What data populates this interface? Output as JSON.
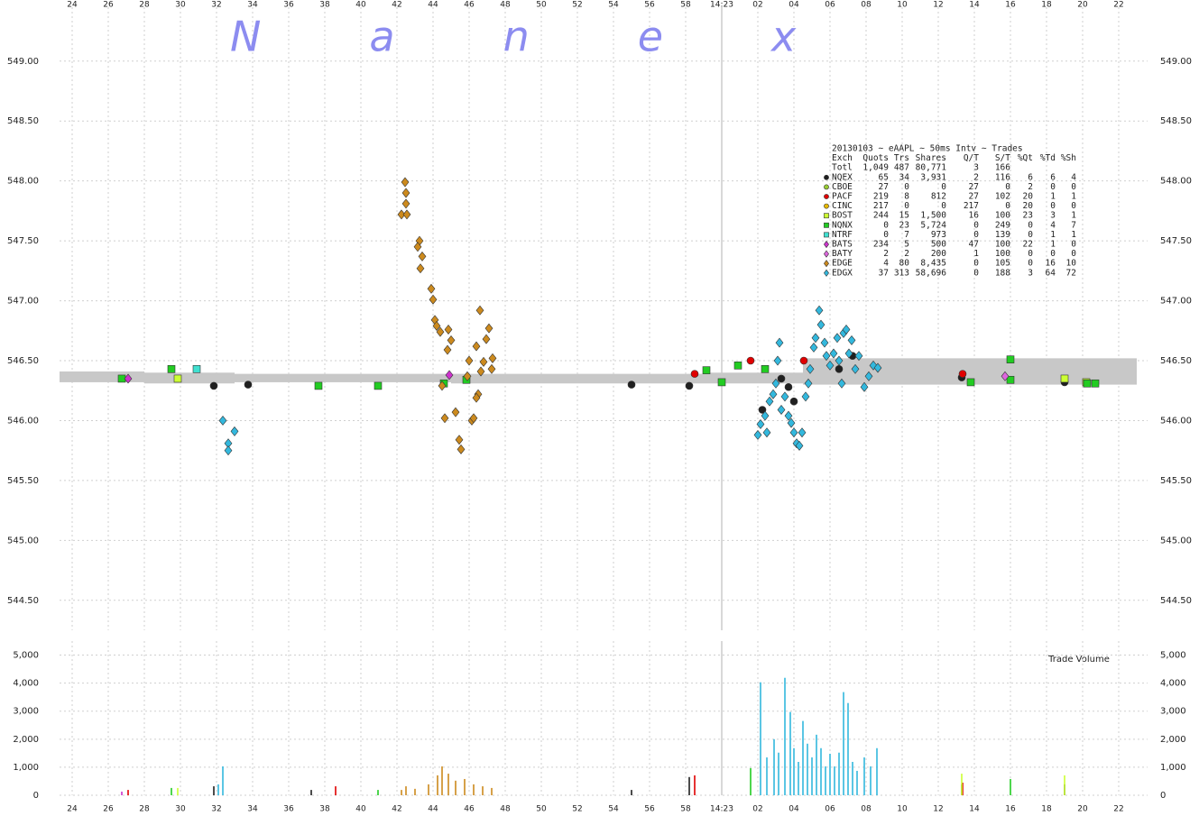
{
  "chart_data": [
    {
      "type": "scatter",
      "watermark": "Nanex",
      "legend_title": "20130103 ~ eAAPL ~ 50ms Intv ~ Trades",
      "legend_header": [
        "Exch",
        "Quots",
        "Trs",
        "Shares",
        "Q/T",
        "S/T",
        "%Qt",
        "%Td",
        "%Sh"
      ],
      "legend_total": [
        "Totl",
        "1,049",
        "487",
        "80,771",
        "3",
        "166"
      ],
      "xlim": [
        23.3,
        83.6
      ],
      "xticks": [
        24,
        26,
        28,
        30,
        32,
        34,
        36,
        38,
        40,
        42,
        44,
        46,
        48,
        50,
        52,
        54,
        56,
        58,
        {
          "value": 60,
          "label": "14:23"
        },
        {
          "value": 62,
          "label": "02"
        },
        {
          "value": 64,
          "label": "04"
        },
        {
          "value": 66,
          "label": "06"
        },
        {
          "value": 68,
          "label": "08"
        },
        {
          "value": 70,
          "label": "10"
        },
        {
          "value": 72,
          "label": "12"
        },
        {
          "value": 74,
          "label": "14"
        },
        {
          "value": 76,
          "label": "16"
        },
        {
          "value": 78,
          "label": "18"
        },
        {
          "value": 80,
          "label": "20"
        },
        {
          "value": 82,
          "label": "22"
        }
      ],
      "ylim": [
        544.25,
        549.45
      ],
      "yticks": [
        {
          "value": 549,
          "label": "549.00"
        },
        {
          "value": 548.5,
          "label": "548.50"
        },
        {
          "value": 548,
          "label": "548.00"
        },
        {
          "value": 547.5,
          "label": "547.50"
        },
        {
          "value": 547,
          "label": "547.00"
        },
        {
          "value": 546.5,
          "label": "546.50"
        },
        {
          "value": 546,
          "label": "546.00"
        },
        {
          "value": 545.5,
          "label": "545.50"
        },
        {
          "value": 545,
          "label": "545.00"
        },
        {
          "value": 544.5,
          "label": "544.50"
        }
      ],
      "grid": true,
      "nbbo": {
        "color": "#c8c8c8",
        "x": [
          23.3,
          28,
          33,
          45,
          59,
          64.5
        ],
        "bid": [
          546.32,
          546.31,
          546.32,
          546.31,
          546.31,
          546.3
        ],
        "ask": [
          546.41,
          546.4,
          546.39,
          546.39,
          546.4,
          546.52
        ]
      },
      "series": [
        {
          "name": "NQEX",
          "color": "#202020",
          "marker": "circle",
          "stats": [
            "65",
            "34",
            "3,931",
            "2",
            "116",
            "6",
            "6",
            "4"
          ],
          "x": [
            31.85,
            33.75,
            55.0,
            58.2,
            73.3,
            79.0,
            62.25,
            63.3,
            63.7,
            64.0,
            66.5,
            67.25
          ],
          "values": [
            546.29,
            546.3,
            546.3,
            546.29,
            546.36,
            546.32,
            546.09,
            546.35,
            546.28,
            546.16,
            546.43,
            546.54
          ]
        },
        {
          "name": "CBOE",
          "color": "#99cc33",
          "marker": "circle",
          "stats": [
            "27",
            "0",
            "0",
            "27",
            "0",
            "2",
            "0",
            "0"
          ],
          "x": [],
          "values": []
        },
        {
          "name": "PACF",
          "color": "#e00000",
          "marker": "circle",
          "stats": [
            "219",
            "8",
            "812",
            "27",
            "102",
            "20",
            "1",
            "1"
          ],
          "x": [
            58.5,
            61.6,
            64.55,
            73.35
          ],
          "values": [
            546.39,
            546.5,
            546.5,
            546.39
          ]
        },
        {
          "name": "CINC",
          "color": "#e6b800",
          "marker": "circle",
          "stats": [
            "217",
            "0",
            "0",
            "217",
            "0",
            "20",
            "0",
            "0"
          ],
          "x": [],
          "values": []
        },
        {
          "name": "BOST",
          "color": "#ccff33",
          "marker": "square",
          "stats": [
            "244",
            "15",
            "1,500",
            "16",
            "100",
            "23",
            "3",
            "1"
          ],
          "x": [
            29.85,
            79.0,
            80.2
          ],
          "values": [
            546.35,
            546.35,
            546.32
          ]
        },
        {
          "name": "NQNX",
          "color": "#22cc22",
          "marker": "square",
          "stats": [
            "0",
            "23",
            "5,724",
            "0",
            "249",
            "0",
            "4",
            "7"
          ],
          "x": [
            40.95,
            80.25,
            26.75,
            29.5,
            37.65,
            44.6,
            45.85,
            59.15,
            60.0,
            60.9,
            62.4,
            73.8,
            76.0,
            76.0,
            80.7
          ],
          "values": [
            546.29,
            546.31,
            546.35,
            546.43,
            546.29,
            546.31,
            546.34,
            546.42,
            546.32,
            546.46,
            546.43,
            546.32,
            546.51,
            546.34,
            546.31
          ]
        },
        {
          "name": "NTRF",
          "color": "#40e0d0",
          "marker": "square",
          "stats": [
            "0",
            "7",
            "973",
            "0",
            "139",
            "0",
            "1",
            "1"
          ],
          "x": [
            30.9
          ],
          "values": [
            546.43
          ]
        },
        {
          "name": "BATS",
          "color": "#cc33cc",
          "marker": "diamond",
          "stats": [
            "234",
            "5",
            "500",
            "47",
            "100",
            "22",
            "1",
            "0"
          ],
          "x": [
            27.1,
            44.9
          ],
          "values": [
            546.35,
            546.38
          ]
        },
        {
          "name": "BATY",
          "color": "#dd66dd",
          "marker": "diamond",
          "stats": [
            "2",
            "2",
            "200",
            "1",
            "100",
            "0",
            "0",
            "0"
          ],
          "x": [
            75.7
          ],
          "values": [
            546.37
          ]
        },
        {
          "name": "EDGE",
          "color": "#cc8a1e",
          "marker": "diamond",
          "stats": [
            "4",
            "80",
            "8,435",
            "0",
            "105",
            "0",
            "16",
            "10"
          ],
          "x": [
            42.45,
            42.5,
            42.5,
            42.25,
            42.55,
            43.25,
            43.15,
            43.4,
            43.3,
            43.9,
            44.0,
            44.1,
            44.2,
            44.4,
            44.85,
            45.0,
            44.8,
            44.5,
            44.65,
            45.25,
            45.45,
            45.55,
            45.9,
            46.0,
            46.15,
            46.25,
            46.4,
            46.6,
            46.5,
            46.65,
            46.8,
            46.95,
            47.1,
            47.3,
            47.25,
            46.4
          ],
          "values": [
            547.99,
            547.9,
            547.81,
            547.72,
            547.72,
            547.5,
            547.45,
            547.37,
            547.27,
            547.1,
            547.01,
            546.84,
            546.79,
            546.74,
            546.76,
            546.67,
            546.59,
            546.29,
            546.02,
            546.07,
            545.84,
            545.76,
            546.37,
            546.5,
            546.0,
            546.02,
            546.62,
            546.92,
            546.22,
            546.41,
            546.49,
            546.68,
            546.77,
            546.52,
            546.43,
            546.19
          ]
        },
        {
          "name": "EDGX",
          "color": "#33b8dd",
          "marker": "diamond",
          "stats": [
            "37",
            "313",
            "58,696",
            "0",
            "188",
            "3",
            "64",
            "72"
          ],
          "x": [
            32.35,
            32.65,
            32.65,
            33.0,
            62.0,
            62.15,
            62.4,
            62.5,
            62.65,
            62.85,
            63.0,
            63.1,
            63.2,
            63.3,
            63.5,
            63.7,
            63.85,
            64.0,
            64.15,
            64.3,
            64.45,
            64.65,
            64.8,
            64.9,
            65.1,
            65.2,
            65.4,
            65.5,
            65.7,
            65.8,
            66.0,
            66.2,
            66.4,
            66.5,
            66.65,
            66.75,
            66.9,
            67.05,
            67.2,
            67.4,
            67.6,
            67.9,
            68.15,
            68.4,
            68.65
          ],
          "values": [
            546.0,
            545.81,
            545.75,
            545.91,
            545.88,
            545.97,
            546.04,
            545.9,
            546.16,
            546.22,
            546.31,
            546.5,
            546.65,
            546.09,
            546.2,
            546.04,
            545.98,
            545.9,
            545.81,
            545.79,
            545.9,
            546.2,
            546.31,
            546.43,
            546.61,
            546.69,
            546.92,
            546.8,
            546.65,
            546.54,
            546.46,
            546.56,
            546.69,
            546.5,
            546.31,
            546.73,
            546.76,
            546.56,
            546.67,
            546.43,
            546.54,
            546.28,
            546.37,
            546.46,
            546.44
          ]
        }
      ]
    },
    {
      "type": "bar",
      "title": "Trade Volume",
      "xlim": [
        23.3,
        83.6
      ],
      "xticks": [
        24,
        26,
        28,
        30,
        32,
        34,
        36,
        38,
        40,
        42,
        44,
        46,
        48,
        50,
        52,
        54,
        56,
        58,
        {
          "value": 60,
          "label": "14:23"
        },
        {
          "value": 62,
          "label": "02"
        },
        {
          "value": 64,
          "label": "04"
        },
        {
          "value": 66,
          "label": "06"
        },
        {
          "value": 68,
          "label": "08"
        },
        {
          "value": 70,
          "label": "10"
        },
        {
          "value": 72,
          "label": "12"
        },
        {
          "value": 74,
          "label": "14"
        },
        {
          "value": 76,
          "label": "16"
        },
        {
          "value": 78,
          "label": "18"
        },
        {
          "value": 80,
          "label": "20"
        },
        {
          "value": 82,
          "label": "22"
        }
      ],
      "ylim": [
        0,
        5500
      ],
      "yticks": [
        {
          "value": 5000,
          "label": "5,000"
        },
        {
          "value": 4000,
          "label": "4,000"
        },
        {
          "value": 3000,
          "label": "3,000"
        },
        {
          "value": 2000,
          "label": "2,000"
        },
        {
          "value": 1000,
          "label": "1,000"
        },
        0
      ],
      "grid": true,
      "x": [
        32.35,
        32.1,
        42.25,
        42.5,
        43.0,
        43.75,
        44.25,
        44.5,
        44.85,
        45.25,
        45.75,
        46.25,
        46.75,
        47.25,
        31.85,
        37.25,
        55.0,
        58.2,
        73.3,
        79.0,
        27.1,
        38.6,
        58.5,
        73.35,
        29.85,
        73.3,
        79.0,
        29.5,
        40.95,
        61.6,
        76.0,
        26.75,
        62.15,
        62.5,
        62.9,
        63.15,
        63.5,
        63.8,
        64.0,
        64.25,
        64.5,
        64.75,
        65.0,
        65.25,
        65.5,
        65.75,
        66.0,
        66.25,
        66.5,
        66.75,
        67.0,
        67.25,
        67.5,
        67.9,
        68.25,
        68.6
      ],
      "values": [
        1030,
        390,
        190,
        320,
        230,
        390,
        710,
        1030,
        770,
        520,
        580,
        390,
        320,
        260,
        320,
        190,
        190,
        650,
        390,
        390,
        190,
        320,
        710,
        450,
        260,
        770,
        710,
        260,
        190,
        970,
        580,
        130,
        4030,
        1350,
        2000,
        1520,
        4190,
        2970,
        1680,
        1190,
        2650,
        1840,
        1350,
        2160,
        1680,
        1030,
        1480,
        1030,
        1520,
        3680,
        3290,
        1190,
        870,
        1350,
        1030,
        1680
      ],
      "colors": [
        "#33b8dd",
        "#33b8dd",
        "#cc8a1e",
        "#cc8a1e",
        "#cc8a1e",
        "#cc8a1e",
        "#cc8a1e",
        "#cc8a1e",
        "#cc8a1e",
        "#cc8a1e",
        "#cc8a1e",
        "#cc8a1e",
        "#cc8a1e",
        "#cc8a1e",
        "#202020",
        "#202020",
        "#202020",
        "#202020",
        "#202020",
        "#202020",
        "#e00000",
        "#e00000",
        "#e00000",
        "#e00000",
        "#ccff33",
        "#ccff33",
        "#ccff33",
        "#22cc22",
        "#22cc22",
        "#22cc22",
        "#22cc22",
        "#cc33cc",
        "#33b8dd",
        "#33b8dd",
        "#33b8dd",
        "#33b8dd",
        "#33b8dd",
        "#33b8dd",
        "#33b8dd",
        "#33b8dd",
        "#33b8dd",
        "#33b8dd",
        "#33b8dd",
        "#33b8dd",
        "#33b8dd",
        "#33b8dd",
        "#33b8dd",
        "#33b8dd",
        "#33b8dd",
        "#33b8dd",
        "#33b8dd",
        "#33b8dd",
        "#33b8dd",
        "#33b8dd",
        "#33b8dd",
        "#33b8dd"
      ]
    }
  ]
}
